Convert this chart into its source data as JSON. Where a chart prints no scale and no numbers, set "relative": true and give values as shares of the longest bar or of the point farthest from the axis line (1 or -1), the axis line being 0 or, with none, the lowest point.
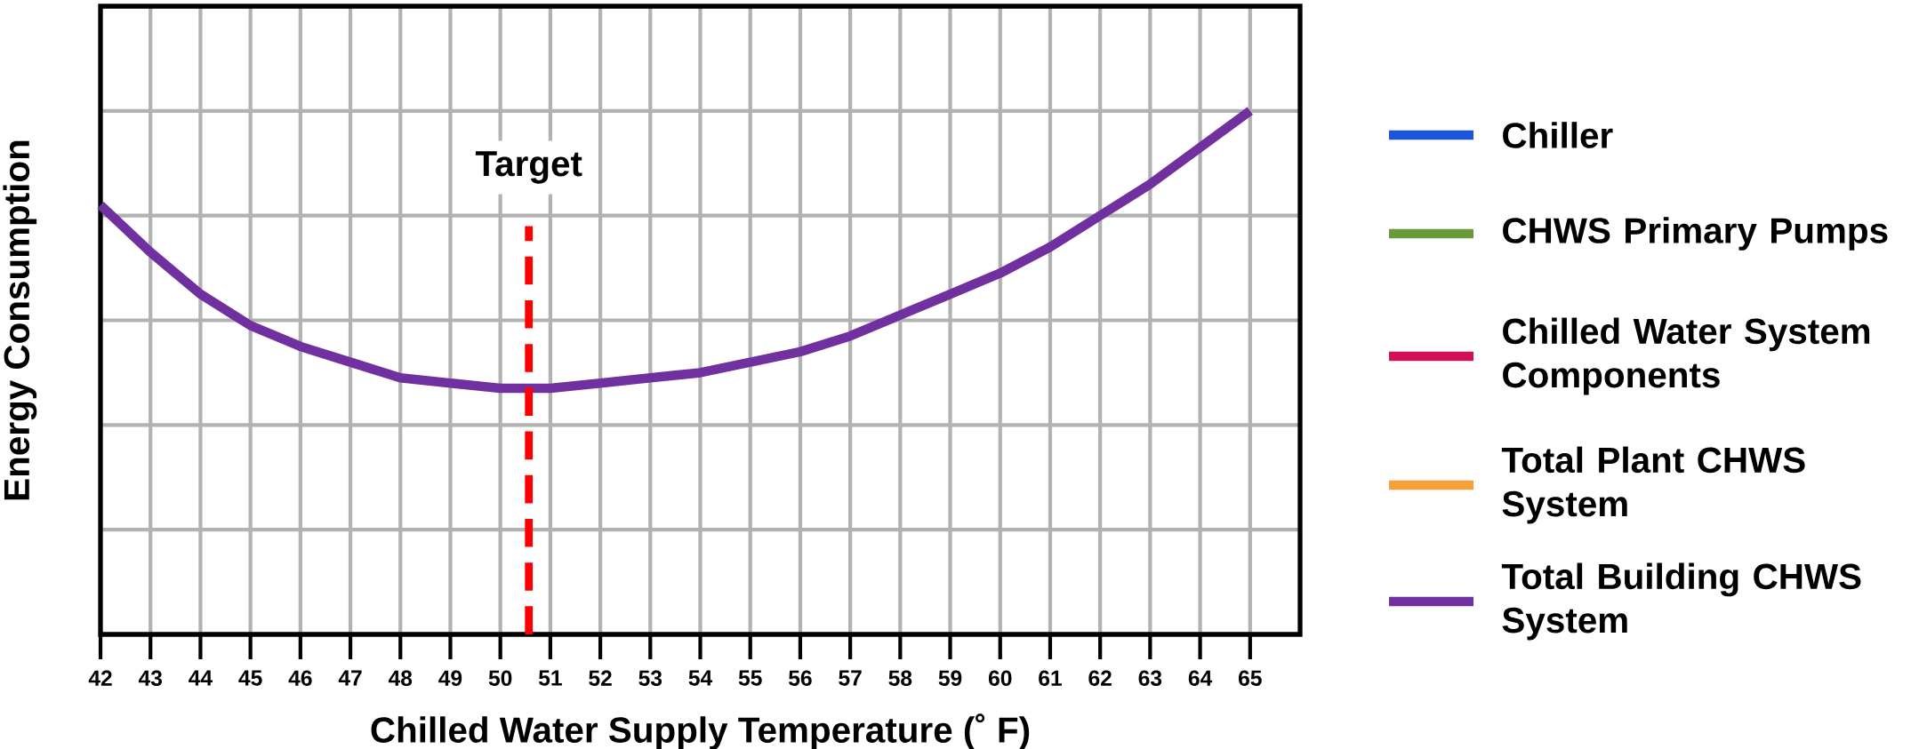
{
  "chart_data": {
    "type": "line",
    "relative": true,
    "xlabel": "Chilled Water Supply Temperature (˚ F)",
    "ylabel": "Energy Consumption",
    "x": [
      42,
      43,
      44,
      45,
      46,
      47,
      48,
      49,
      50,
      51,
      52,
      53,
      54,
      55,
      56,
      57,
      58,
      59,
      60,
      61,
      62,
      63,
      64,
      65
    ],
    "xlim": [
      42,
      66
    ],
    "xticks": [
      42,
      43,
      44,
      45,
      46,
      47,
      48,
      49,
      50,
      51,
      52,
      53,
      54,
      55,
      56,
      57,
      58,
      59,
      60,
      61,
      62,
      63,
      64,
      65
    ],
    "series": [
      {
        "name": "Chiller",
        "color": "#1a56db",
        "values": [
          null,
          null,
          null,
          null,
          null,
          null,
          null,
          null,
          null,
          null,
          null,
          null,
          null,
          null,
          null,
          null,
          null,
          null,
          null,
          null,
          null,
          null,
          null,
          null
        ]
      },
      {
        "name": "CHWS Primary Pumps",
        "color": "#6a9a3a",
        "values": [
          null,
          null,
          null,
          null,
          null,
          null,
          null,
          null,
          null,
          null,
          null,
          null,
          null,
          null,
          null,
          null,
          null,
          null,
          null,
          null,
          null,
          null,
          null,
          null
        ]
      },
      {
        "name": "Chilled Water System Components",
        "color": "#d0105a",
        "values": [
          null,
          null,
          null,
          null,
          null,
          null,
          null,
          null,
          null,
          null,
          null,
          null,
          null,
          null,
          null,
          null,
          null,
          null,
          null,
          null,
          null,
          null,
          null,
          null
        ]
      },
      {
        "name": "Total Plant CHWS System",
        "color": "#f7a03a",
        "values": [
          null,
          null,
          null,
          null,
          null,
          null,
          null,
          null,
          null,
          null,
          null,
          null,
          null,
          null,
          null,
          null,
          null,
          null,
          null,
          null,
          null,
          null,
          null,
          null
        ]
      },
      {
        "name": "Total Building CHWS System",
        "color": "#7030a0",
        "values": [
          0.82,
          0.73,
          0.65,
          0.59,
          0.55,
          0.52,
          0.49,
          0.48,
          0.47,
          0.47,
          0.48,
          0.49,
          0.5,
          0.52,
          0.54,
          0.57,
          0.61,
          0.65,
          0.69,
          0.74,
          0.8,
          0.86,
          0.93,
          1.0
        ]
      }
    ],
    "ref_lines": [
      {
        "axis": "x",
        "value": 50.57,
        "label": "Target",
        "color": "#ff0000",
        "line_style": "dashed"
      }
    ],
    "grid": true,
    "legend": "right",
    "marker": "none",
    "line_style": "solid"
  }
}
